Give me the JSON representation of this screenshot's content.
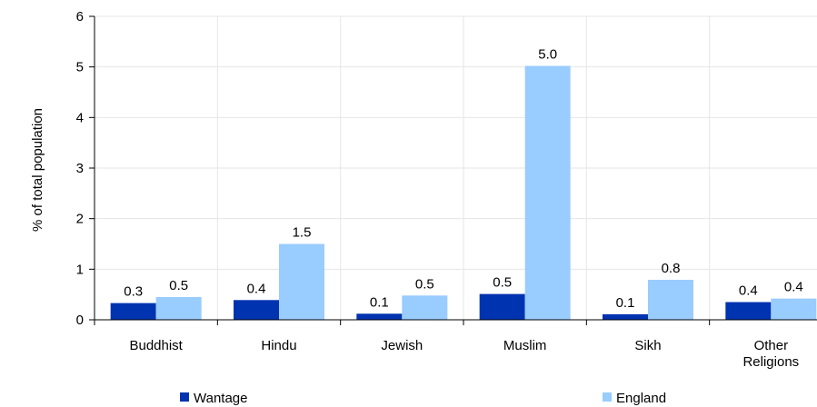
{
  "chart_data": {
    "type": "bar",
    "categories": [
      [
        "Buddhist"
      ],
      [
        "Hindu"
      ],
      [
        "Jewish"
      ],
      [
        "Muslim"
      ],
      [
        "Sikh"
      ],
      [
        "Other",
        "Religions"
      ]
    ],
    "series": [
      {
        "name": "Wantage",
        "values": [
          0.33,
          0.39,
          0.12,
          0.51,
          0.11,
          0.35
        ],
        "labels": [
          "0.3",
          "0.4",
          "0.1",
          "0.5",
          "0.1",
          "0.4"
        ],
        "color": "#0033B0"
      },
      {
        "name": "England",
        "values": [
          0.45,
          1.5,
          0.48,
          5.02,
          0.79,
          0.42
        ],
        "labels": [
          "0.5",
          "1.5",
          "0.5",
          "5.0",
          "0.8",
          "0.4"
        ],
        "color": "#99CCFF"
      }
    ],
    "ylabel": "% of total population",
    "ylim": [
      0,
      6
    ],
    "yticks": [
      "0",
      "1",
      "2",
      "3",
      "4",
      "5",
      "6"
    ],
    "grid": true,
    "legend_position": "bottom"
  }
}
